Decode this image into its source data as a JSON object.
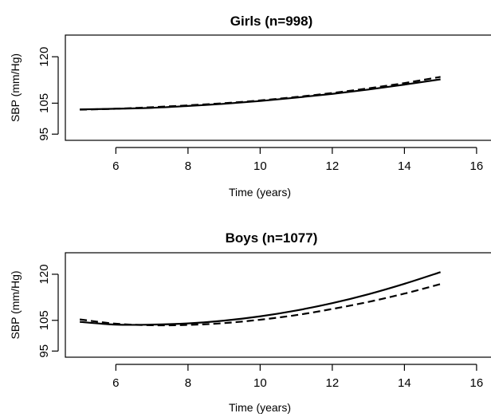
{
  "chart_data": [
    {
      "type": "line",
      "title": "Girls (n=998)",
      "xlabel": "Time (years)",
      "ylabel": "SBP (mm/Hg)",
      "xlim": [
        4.6,
        16.4
      ],
      "ylim": [
        93,
        127
      ],
      "xticks": [
        6,
        8,
        10,
        12,
        14,
        16
      ],
      "yticks": [
        95,
        105,
        120
      ],
      "grid": false,
      "series": [
        {
          "style": "solid",
          "x": [
            5,
            6,
            7,
            8,
            9,
            10,
            11,
            12,
            13,
            14,
            15
          ],
          "y": [
            103.0,
            103.2,
            103.5,
            104.1,
            104.8,
            105.7,
            106.8,
            108.0,
            109.4,
            111.0,
            112.7
          ]
        },
        {
          "style": "dashed",
          "x": [
            5,
            6,
            7,
            8,
            9,
            10,
            11,
            12,
            13,
            14,
            15
          ],
          "y": [
            102.9,
            103.2,
            103.7,
            104.3,
            105.0,
            105.9,
            107.0,
            108.3,
            109.8,
            111.5,
            113.5
          ]
        }
      ]
    },
    {
      "type": "line",
      "title": "Boys (n=1077)",
      "xlabel": "Time (years)",
      "ylabel": "SBP (mm/Hg)",
      "xlim": [
        4.6,
        16.4
      ],
      "ylim": [
        93,
        127
      ],
      "xticks": [
        6,
        8,
        10,
        12,
        14,
        16
      ],
      "yticks": [
        95,
        105,
        120
      ],
      "grid": false,
      "series": [
        {
          "style": "solid",
          "x": [
            5,
            6,
            7,
            8,
            9,
            10,
            11,
            12,
            13,
            14,
            15
          ],
          "y": [
            104.5,
            103.6,
            103.6,
            104.0,
            104.9,
            106.3,
            108.2,
            110.6,
            113.5,
            116.9,
            120.7
          ]
        },
        {
          "style": "dashed",
          "x": [
            5,
            6,
            7,
            8,
            9,
            10,
            11,
            12,
            13,
            14,
            15
          ],
          "y": [
            105.3,
            103.9,
            103.4,
            103.5,
            104.1,
            105.2,
            106.7,
            108.7,
            111.0,
            113.7,
            116.8
          ]
        }
      ]
    }
  ]
}
